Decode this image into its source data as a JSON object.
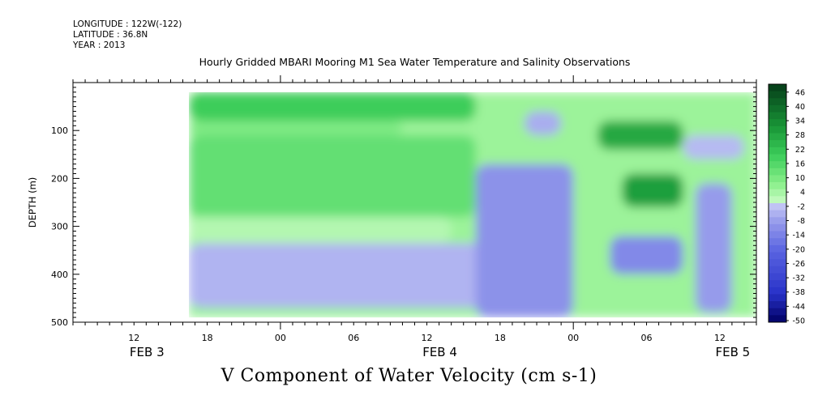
{
  "header": {
    "longitude": "LONGITUDE : 122W(-122)",
    "latitude": "LATITUDE : 36.8N",
    "year": "YEAR : 2013"
  },
  "chart_data": {
    "type": "heatmap",
    "title": "Hourly Gridded MBARI Mooring M1 Sea Water Temperature and Salinity Observations",
    "subtitle": "V Component of Water Velocity (cm s-1)",
    "ylabel": "DEPTH (m)",
    "xlabel": "",
    "xlim_hours": [
      7,
      63
    ],
    "ylim": [
      500,
      0
    ],
    "y_inverted": true,
    "yticks": [
      100,
      200,
      300,
      400,
      500
    ],
    "xtick_labels": [
      {
        "hour": 12,
        "label": "12"
      },
      {
        "hour": 18,
        "label": "18"
      },
      {
        "hour": 24,
        "label": "00"
      },
      {
        "hour": 30,
        "label": "06"
      },
      {
        "hour": 36,
        "label": "12"
      },
      {
        "hour": 42,
        "label": "18"
      },
      {
        "hour": 48,
        "label": "00"
      },
      {
        "hour": 54,
        "label": "06"
      },
      {
        "hour": 60,
        "label": "12"
      }
    ],
    "date_labels": [
      {
        "hour": 12,
        "label": "FEB  3"
      },
      {
        "hour": 36,
        "label": "FEB  4"
      },
      {
        "hour": 60,
        "label": "FEB  5"
      }
    ],
    "colorbar_levels": [
      46,
      40,
      34,
      28,
      22,
      16,
      10,
      4,
      -2,
      -8,
      -14,
      -20,
      -26,
      -32,
      -38,
      -44,
      -50
    ],
    "colorbar_range": [
      -50,
      50
    ],
    "colors": {
      "strong_positive": "#0a3d1a",
      "positive": "#22c44a",
      "weak_positive": "#a8f5a8",
      "weak_negative": "#b4b8f0",
      "negative": "#5a62e0",
      "strong_negative": "#00006a"
    },
    "data_region": {
      "start_hour": 16.5,
      "end_hour": 63,
      "min_depth": 20,
      "max_depth": 490
    },
    "field_regions": [
      {
        "t0": 16.5,
        "t1": 63,
        "d0": 20,
        "d1": 490,
        "v": 6
      },
      {
        "t0": 16.5,
        "t1": 40,
        "d0": 20,
        "d1": 80,
        "v": 20
      },
      {
        "t0": 16.5,
        "t1": 34,
        "d0": 80,
        "d1": 110,
        "v": 10
      },
      {
        "t0": 16.5,
        "t1": 40,
        "d0": 110,
        "d1": 280,
        "v": 14
      },
      {
        "t0": 16.5,
        "t1": 38,
        "d0": 280,
        "d1": 335,
        "v": 3
      },
      {
        "t0": 16.5,
        "t1": 42,
        "d0": 335,
        "d1": 470,
        "v": -4
      },
      {
        "t0": 40,
        "t1": 48,
        "d0": 170,
        "d1": 490,
        "v": -10
      },
      {
        "t0": 44,
        "t1": 47,
        "d0": 60,
        "d1": 110,
        "v": -5
      },
      {
        "t0": 50,
        "t1": 57,
        "d0": 80,
        "d1": 140,
        "v": 28
      },
      {
        "t0": 52,
        "t1": 57,
        "d0": 190,
        "d1": 260,
        "v": 30
      },
      {
        "t0": 57,
        "t1": 62,
        "d0": 110,
        "d1": 160,
        "v": -3
      },
      {
        "t0": 58,
        "t1": 61,
        "d0": 210,
        "d1": 480,
        "v": -8
      },
      {
        "t0": 51,
        "t1": 57,
        "d0": 320,
        "d1": 400,
        "v": -12
      }
    ]
  }
}
